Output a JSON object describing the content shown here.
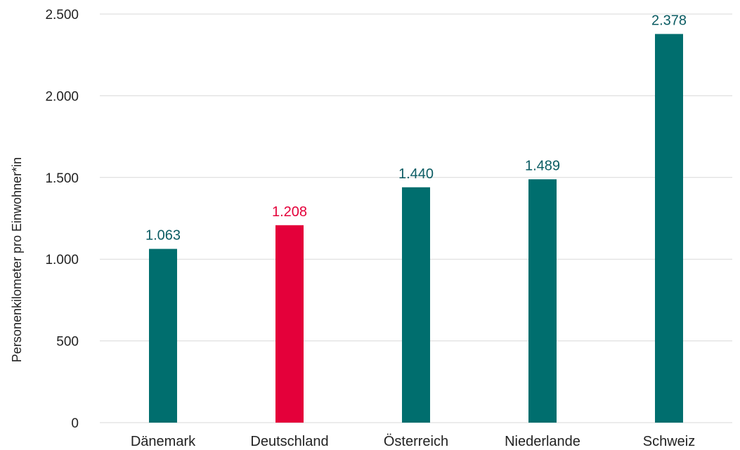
{
  "chart_data": {
    "type": "bar",
    "title": "",
    "xlabel": "",
    "ylabel": "Personenkilometer pro Einwohner*in",
    "categories": [
      "Dänemark",
      "Deutschland",
      "Österreich",
      "Niederlande",
      "Schweiz"
    ],
    "values": [
      1063,
      1208,
      1440,
      1489,
      2378
    ],
    "value_labels": [
      "1.063",
      "1.208",
      "1.440",
      "1.489",
      "2.378"
    ],
    "ylim": [
      0,
      2500
    ],
    "yticks": [
      0,
      500,
      1000,
      1500,
      2000,
      2500
    ],
    "ytick_labels": [
      "0",
      "500",
      "1.000",
      "1.500",
      "2.000",
      "2.500"
    ],
    "grid": true,
    "legend": "none",
    "colors": {
      "default_bar": "#006e6e",
      "highlight_bar": "#e4003a",
      "highlight_category": "Deutschland",
      "default_value_label": "#0b5c63",
      "highlight_value_label": "#e4003a"
    }
  }
}
